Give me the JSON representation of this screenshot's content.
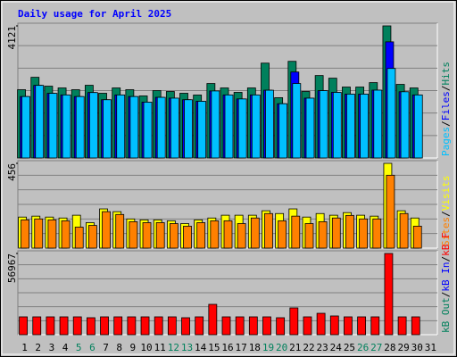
{
  "title": "Daily usage for April 2025",
  "chart_data": [
    {
      "type": "bar",
      "ylim": [
        0,
        4121
      ],
      "yticks": [
        4121
      ],
      "legend_separator": "/",
      "series": [
        {
          "name": "Hits",
          "color": "#00805c",
          "values": [
            2130,
            2517,
            2240,
            2185,
            2130,
            2268,
            2019,
            2185,
            2130,
            1936,
            2102,
            2074,
            2019,
            1964,
            2323,
            2185,
            2047,
            2185,
            2959,
            1881,
            3015,
            2074,
            2572,
            2489,
            2213,
            2213,
            2351,
            4121,
            2296,
            2185,
            0
          ]
        },
        {
          "name": "Files",
          "color": "#0000ff",
          "values": [
            1917,
            2265,
            2016,
            1967,
            1917,
            2041,
            1817,
            1967,
            1917,
            1742,
            1892,
            1867,
            1817,
            1768,
            2091,
            1967,
            1842,
            1967,
            2114,
            1693,
            2682,
            1867,
            2100,
            2047,
            1992,
            1992,
            2116,
            3623,
            2066,
            1967,
            0
          ]
        },
        {
          "name": "Pages",
          "color": "#00c0ff",
          "values": [
            1917,
            2265,
            2016,
            1967,
            1917,
            2041,
            1817,
            1967,
            1917,
            1742,
            1892,
            1867,
            1817,
            1768,
            2091,
            1967,
            1842,
            1967,
            2114,
            1693,
            2323,
            1867,
            2100,
            2047,
            1992,
            1992,
            2116,
            2793,
            2066,
            1967,
            0
          ]
        }
      ]
    },
    {
      "type": "bar",
      "ylim": [
        0,
        456
      ],
      "yticks": [
        456
      ],
      "legend_separator": "/",
      "series": [
        {
          "name": "Visits",
          "color": "#ffff00",
          "values": [
            167,
            172,
            167,
            162,
            177,
            137,
            211,
            196,
            157,
            152,
            152,
            147,
            132,
            152,
            162,
            177,
            177,
            177,
            201,
            186,
            211,
            167,
            186,
            177,
            191,
            177,
            172,
            456,
            201,
            162,
            0
          ]
        },
        {
          "name": "Sites",
          "color": "#ff8000",
          "values": [
            152,
            157,
            152,
            147,
            113,
            122,
            196,
            181,
            142,
            137,
            137,
            132,
            118,
            137,
            147,
            147,
            132,
            162,
            186,
            147,
            172,
            132,
            142,
            162,
            176,
            157,
            157,
            392,
            186,
            118,
            0
          ]
        }
      ]
    },
    {
      "type": "bar",
      "ylim": [
        0,
        56967
      ],
      "yticks": [
        56967
      ],
      "legend_separator": "/",
      "categories": [
        "1",
        "2",
        "3",
        "4",
        "5",
        "6",
        "7",
        "8",
        "9",
        "10",
        "11",
        "12",
        "13",
        "14",
        "15",
        "16",
        "17",
        "18",
        "19",
        "20",
        "21",
        "22",
        "23",
        "24",
        "25",
        "26",
        "27",
        "28",
        "29",
        "30",
        "31"
      ],
      "category_label_colors": [
        "#000000",
        "#000000",
        "#000000",
        "#000000",
        "#00805c",
        "#00805c",
        "#000000",
        "#000000",
        "#000000",
        "#000000",
        "#000000",
        "#00805c",
        "#00805c",
        "#000000",
        "#000000",
        "#000000",
        "#000000",
        "#000000",
        "#00805c",
        "#00805c",
        "#000000",
        "#000000",
        "#000000",
        "#000000",
        "#000000",
        "#00805c",
        "#00805c",
        "#000000",
        "#000000",
        "#000000",
        "#000000"
      ],
      "series": [
        {
          "name": "kB F",
          "color": "#ff0000",
          "values": [
            12520,
            12520,
            12520,
            12520,
            12520,
            11900,
            12520,
            12520,
            12520,
            12520,
            12520,
            12520,
            11900,
            12520,
            21280,
            12520,
            12520,
            12520,
            12520,
            11900,
            18780,
            12520,
            15000,
            13150,
            12520,
            12520,
            12520,
            56967,
            12520,
            12520,
            0
          ]
        },
        {
          "name": "kB In",
          "color": "#0000ff",
          "values": [
            0,
            0,
            0,
            0,
            0,
            0,
            0,
            0,
            0,
            0,
            0,
            0,
            0,
            0,
            0,
            0,
            0,
            0,
            0,
            0,
            0,
            0,
            0,
            0,
            0,
            0,
            0,
            0,
            0,
            0,
            0
          ]
        },
        {
          "name": "kB Out",
          "color": "#00805c",
          "values": [
            0,
            0,
            0,
            0,
            0,
            0,
            0,
            0,
            0,
            0,
            0,
            0,
            0,
            0,
            0,
            0,
            0,
            0,
            0,
            0,
            0,
            0,
            0,
            0,
            0,
            0,
            0,
            0,
            0,
            0,
            0
          ]
        }
      ]
    }
  ]
}
